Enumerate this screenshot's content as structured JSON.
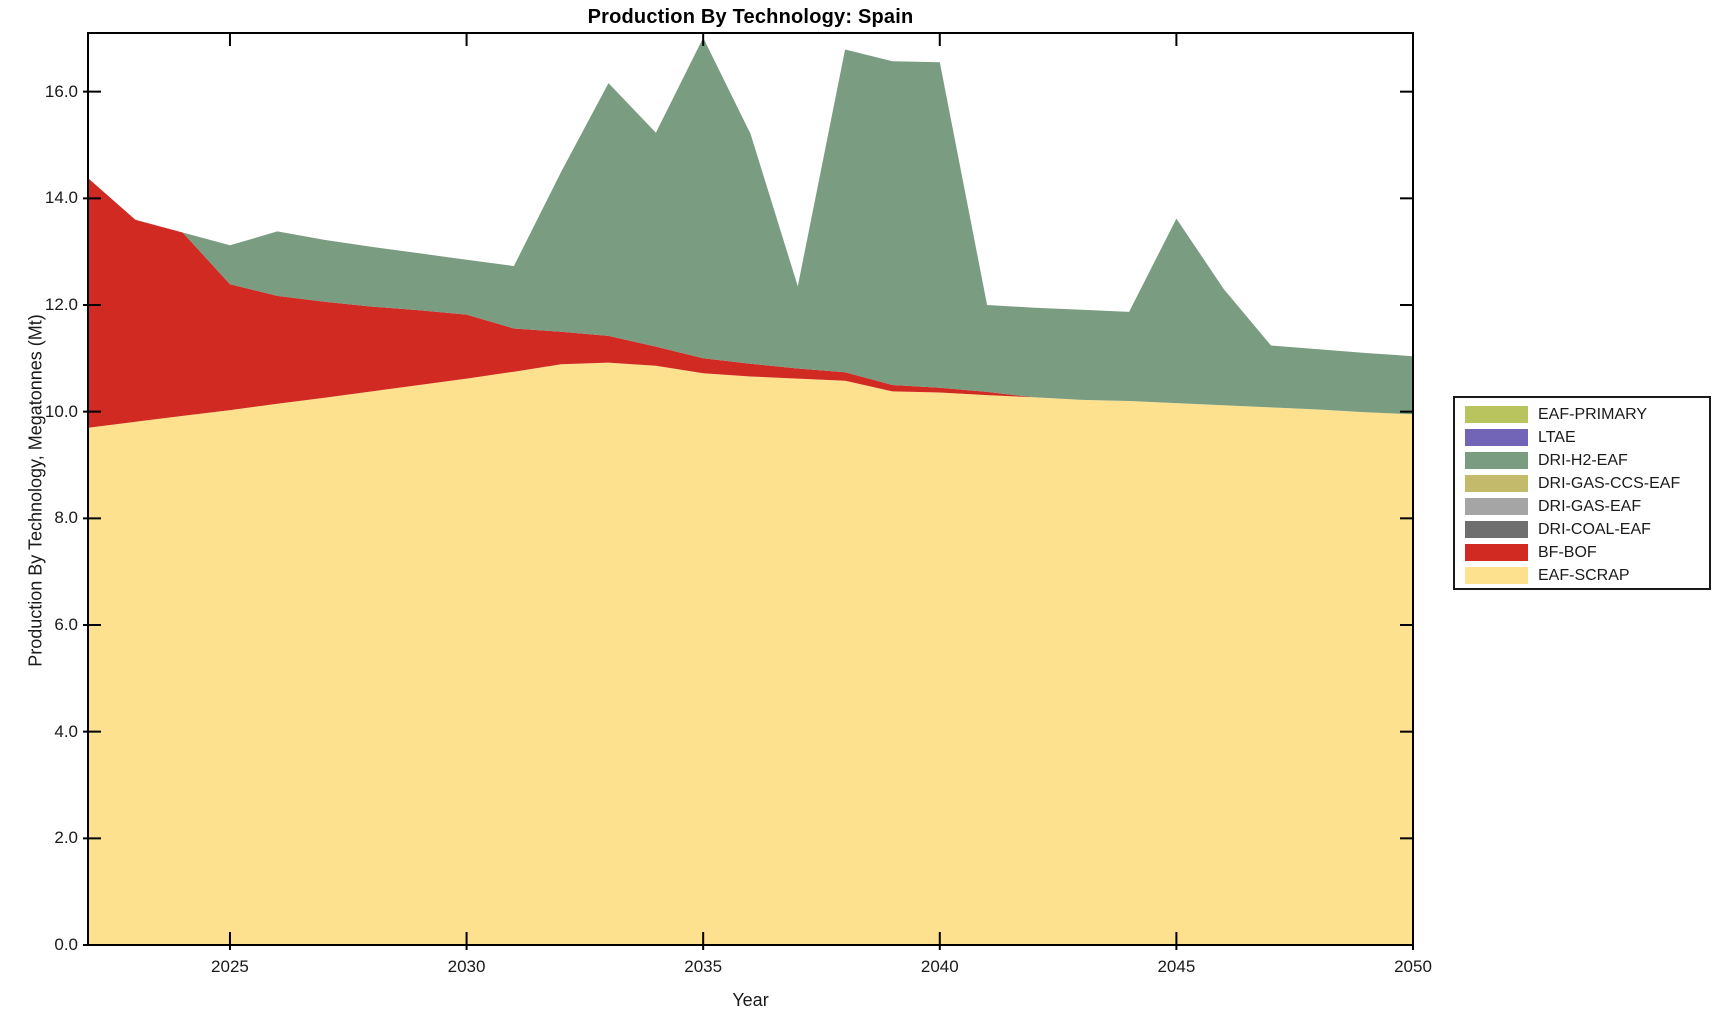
{
  "title": "Production By Technology: Spain",
  "axes": {
    "xlabel": "Year",
    "ylabel": "Production By Technology, Megatonnes (Mt)",
    "x_tick_labels": [
      "2025",
      "2030",
      "2035",
      "2040",
      "2045",
      "2050"
    ],
    "x_tick_values": [
      2025,
      2030,
      2035,
      2040,
      2045,
      2050
    ],
    "y_tick_labels": [
      "0.0",
      "2.0",
      "4.0",
      "6.0",
      "8.0",
      "10.0",
      "12.0",
      "14.0",
      "16.0"
    ],
    "y_tick_values": [
      0,
      2,
      4,
      6,
      8,
      10,
      12,
      14,
      16
    ]
  },
  "legend": {
    "entries": [
      {
        "label": "EAF-PRIMARY",
        "color": "#B9C45F"
      },
      {
        "label": "LTAE",
        "color": "#7265B8"
      },
      {
        "label": "DRI-H2-EAF",
        "color": "#7A9C81"
      },
      {
        "label": "DRI-GAS-CCS-EAF",
        "color": "#C4BA6C"
      },
      {
        "label": "DRI-GAS-EAF",
        "color": "#A5A5A5"
      },
      {
        "label": "DRI-COAL-EAF",
        "color": "#6F6F6F"
      },
      {
        "label": "BF-BOF",
        "color": "#D02A23"
      },
      {
        "label": "EAF-SCRAP",
        "color": "#FDE18E"
      }
    ]
  },
  "chart_data": {
    "type": "area",
    "stacked": true,
    "title": "Production By Technology: Spain",
    "xlabel": "Year",
    "ylabel": "Production By Technology, Megatonnes (Mt)",
    "xlim": [
      2022,
      2050
    ],
    "ylim": [
      0,
      17.1
    ],
    "grid": false,
    "legend_position": "right-outside",
    "x": [
      2022,
      2023,
      2024,
      2025,
      2026,
      2027,
      2028,
      2029,
      2030,
      2031,
      2032,
      2033,
      2034,
      2035,
      2036,
      2037,
      2038,
      2039,
      2040,
      2041,
      2042,
      2043,
      2044,
      2045,
      2046,
      2047,
      2048,
      2049,
      2050
    ],
    "series": [
      {
        "name": "EAF-SCRAP",
        "color": "#FDE18E",
        "values": [
          9.7,
          9.81,
          9.92,
          10.03,
          10.15,
          10.26,
          10.38,
          10.5,
          10.62,
          10.75,
          10.89,
          10.92,
          10.86,
          10.72,
          10.66,
          10.62,
          10.58,
          10.38,
          10.36,
          10.31,
          10.27,
          10.22,
          10.2,
          10.16,
          10.12,
          10.08,
          10.04,
          9.99,
          9.95
        ]
      },
      {
        "name": "BF-BOF",
        "color": "#D02A23",
        "values": [
          4.68,
          3.79,
          3.44,
          2.36,
          2.02,
          1.8,
          1.59,
          1.4,
          1.2,
          0.81,
          0.61,
          0.5,
          0.36,
          0.28,
          0.24,
          0.19,
          0.16,
          0.12,
          0.09,
          0.06,
          0.0,
          0.0,
          0.0,
          0.0,
          0.0,
          0.0,
          0.0,
          0.0,
          0.0
        ]
      },
      {
        "name": "DRI-COAL-EAF",
        "color": "#6F6F6F",
        "values": [
          0,
          0,
          0,
          0,
          0,
          0,
          0,
          0,
          0,
          0,
          0,
          0,
          0,
          0,
          0,
          0,
          0,
          0,
          0,
          0,
          0,
          0,
          0,
          0,
          0,
          0,
          0,
          0,
          0
        ]
      },
      {
        "name": "DRI-GAS-EAF",
        "color": "#A5A5A5",
        "values": [
          0,
          0,
          0,
          0,
          0,
          0,
          0,
          0,
          0,
          0,
          0,
          0,
          0,
          0,
          0,
          0,
          0,
          0,
          0,
          0,
          0,
          0,
          0,
          0,
          0,
          0,
          0,
          0,
          0
        ]
      },
      {
        "name": "DRI-GAS-CCS-EAF",
        "color": "#C4BA6C",
        "values": [
          0,
          0,
          0,
          0,
          0,
          0,
          0,
          0,
          0,
          0,
          0,
          0,
          0,
          0,
          0,
          0,
          0,
          0,
          0,
          0,
          0,
          0,
          0,
          0,
          0,
          0,
          0,
          0,
          0
        ]
      },
      {
        "name": "DRI-H2-EAF",
        "color": "#7A9C81",
        "values": [
          0.0,
          0.0,
          0.0,
          0.73,
          1.21,
          1.16,
          1.12,
          1.07,
          1.03,
          1.17,
          3.0,
          4.74,
          4.01,
          6.01,
          4.31,
          1.54,
          6.05,
          6.07,
          6.1,
          1.63,
          1.68,
          1.69,
          1.67,
          3.46,
          2.18,
          1.16,
          1.13,
          1.11,
          1.09
        ]
      },
      {
        "name": "LTAE",
        "color": "#7265B8",
        "values": [
          0,
          0,
          0,
          0,
          0,
          0,
          0,
          0,
          0,
          0,
          0,
          0,
          0,
          0,
          0,
          0,
          0,
          0,
          0,
          0,
          0,
          0,
          0,
          0,
          0,
          0,
          0,
          0,
          0
        ]
      },
      {
        "name": "EAF-PRIMARY",
        "color": "#B9C45F",
        "values": [
          0,
          0,
          0,
          0,
          0,
          0,
          0,
          0,
          0,
          0,
          0,
          0,
          0,
          0,
          0,
          0,
          0,
          0,
          0,
          0,
          0,
          0,
          0,
          0,
          0,
          0,
          0,
          0,
          0
        ]
      }
    ]
  }
}
